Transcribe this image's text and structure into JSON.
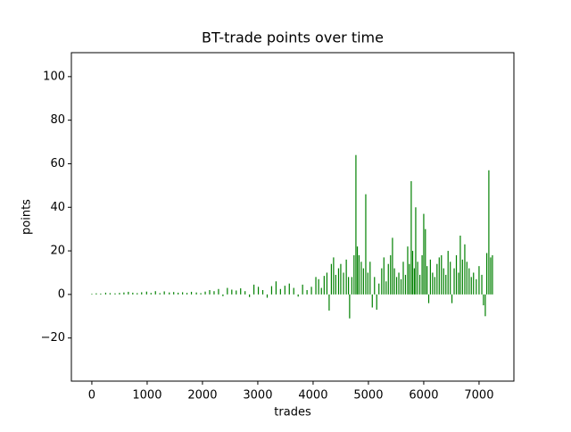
{
  "chart_data": {
    "type": "bar",
    "title": "BT-trade points  over time",
    "x_label": "trades",
    "y_label": "points",
    "color": "#008000",
    "x": [
      0,
      80,
      160,
      250,
      330,
      420,
      500,
      580,
      660,
      740,
      820,
      900,
      990,
      1070,
      1150,
      1230,
      1310,
      1400,
      1480,
      1560,
      1640,
      1720,
      1800,
      1890,
      1970,
      2050,
      2130,
      2210,
      2290,
      2370,
      2450,
      2530,
      2610,
      2690,
      2770,
      2850,
      2930,
      3010,
      3090,
      3170,
      3250,
      3330,
      3410,
      3490,
      3570,
      3650,
      3730,
      3810,
      3890,
      3970,
      4050,
      4100,
      4150,
      4200,
      4250,
      4290,
      4330,
      4370,
      4410,
      4460,
      4500,
      4550,
      4600,
      4640,
      4660,
      4700,
      4740,
      4774,
      4800,
      4830,
      4870,
      4910,
      4952,
      4990,
      5030,
      5070,
      5110,
      5150,
      5190,
      5240,
      5280,
      5320,
      5360,
      5400,
      5435,
      5470,
      5510,
      5550,
      5590,
      5630,
      5670,
      5710,
      5740,
      5774,
      5800,
      5830,
      5855,
      5890,
      5930,
      5970,
      6000,
      6030,
      6060,
      6090,
      6120,
      6160,
      6200,
      6240,
      6280,
      6320,
      6360,
      6400,
      6440,
      6480,
      6510,
      6550,
      6590,
      6630,
      6661,
      6700,
      6742,
      6780,
      6820,
      6860,
      6900,
      6950,
      7000,
      7050,
      7080,
      7113,
      7140,
      7177,
      7210,
      7242
    ],
    "values": [
      0.3,
      0.5,
      0.4,
      0.8,
      0.6,
      0.5,
      0.7,
      0.9,
      1.2,
      0.8,
      0.6,
      1.0,
      1.3,
      0.7,
      1.5,
      0.6,
      1.4,
      0.9,
      1.1,
      0.8,
      1.0,
      0.7,
      1.2,
      0.9,
      0.6,
      1.3,
      2.0,
      1.5,
      2.5,
      -0.8,
      3.0,
      2.2,
      1.8,
      2.8,
      1.5,
      -1.2,
      4.5,
      3.5,
      2.0,
      -1.5,
      3.8,
      6.0,
      2.5,
      4.0,
      5.0,
      3.0,
      -1.0,
      4.5,
      2.0,
      3.5,
      8,
      7,
      3,
      8.5,
      10,
      -7.4,
      14,
      17,
      9,
      12,
      14,
      10,
      16,
      8,
      -11,
      8,
      18,
      64,
      22,
      18,
      15,
      12,
      46,
      10,
      15,
      -6,
      8,
      -7,
      5,
      12,
      17,
      6,
      14,
      18,
      26,
      12,
      8,
      10,
      7,
      15,
      9,
      22,
      14,
      52,
      20,
      12,
      40,
      15,
      9,
      18,
      37,
      30,
      13,
      -4,
      16,
      10,
      8,
      14,
      17,
      18,
      12,
      9,
      20,
      15,
      -4,
      12,
      18,
      10,
      27,
      16,
      23,
      15,
      12,
      8,
      10,
      7,
      13,
      9,
      -5,
      -10,
      19,
      57,
      17,
      18
    ],
    "xlim": [
      -370,
      7630
    ],
    "ylim": [
      -39.8,
      111
    ],
    "xticks": [
      0,
      1000,
      2000,
      3000,
      4000,
      5000,
      6000,
      7000
    ],
    "yticks": [
      {
        "value": -20,
        "label": "−20"
      },
      0,
      20,
      40,
      60,
      80,
      100
    ]
  }
}
